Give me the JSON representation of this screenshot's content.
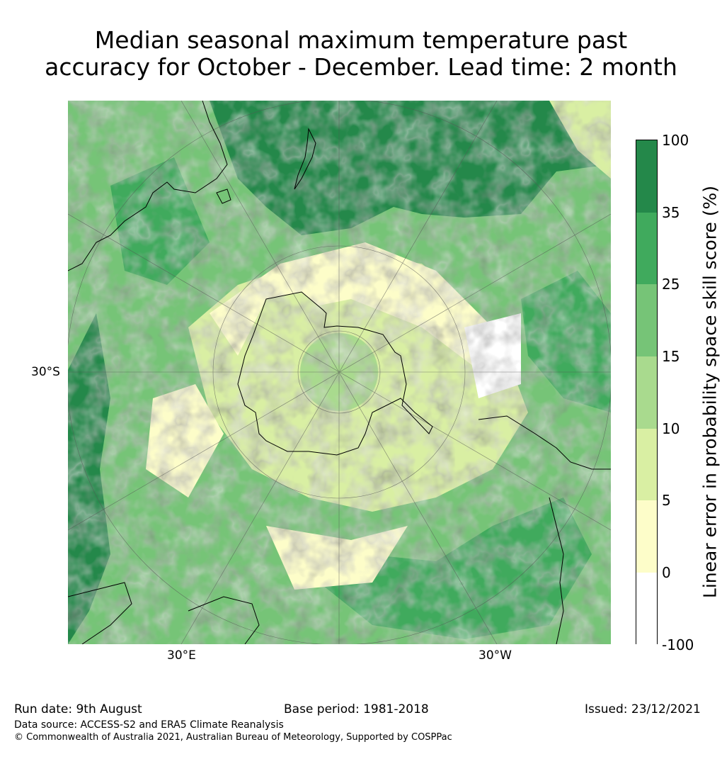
{
  "title": {
    "line1": "Median seasonal maximum temperature past",
    "line2": "accuracy for October - December. Lead time: 2 month"
  },
  "map": {
    "projection": "south polar stereographic",
    "axis_labels": {
      "left": "30°S",
      "bottom_left": "30°E",
      "bottom_right": "30°W"
    }
  },
  "colorbar": {
    "title": "Linear error in probability space skill score (%)",
    "ticks": [
      "100",
      "35",
      "25",
      "15",
      "10",
      "5",
      "0",
      "-100"
    ],
    "bins": [
      {
        "range": "35 to 100",
        "color": "#24884a"
      },
      {
        "range": "25 to 35",
        "color": "#40aa5d"
      },
      {
        "range": "15 to 25",
        "color": "#76c477"
      },
      {
        "range": "10 to 15",
        "color": "#a9da8e"
      },
      {
        "range": "5 to 10",
        "color": "#d9efa3"
      },
      {
        "range": "0 to 5",
        "color": "#fdfdc9"
      },
      {
        "range": "-100 to 0",
        "color": "#ffffff"
      }
    ]
  },
  "footer": {
    "run_date": "Run date: 9th August",
    "base_period": "Base period: 1981-2018",
    "issued": "Issued: 23/12/2021",
    "data_source": "Data source: ACCESS-S2 and ERA5 Climate Reanalysis",
    "copyright": "© Commonwealth of Australia 2021, Australian Bureau of Meteorology, Supported by COSPPac"
  }
}
